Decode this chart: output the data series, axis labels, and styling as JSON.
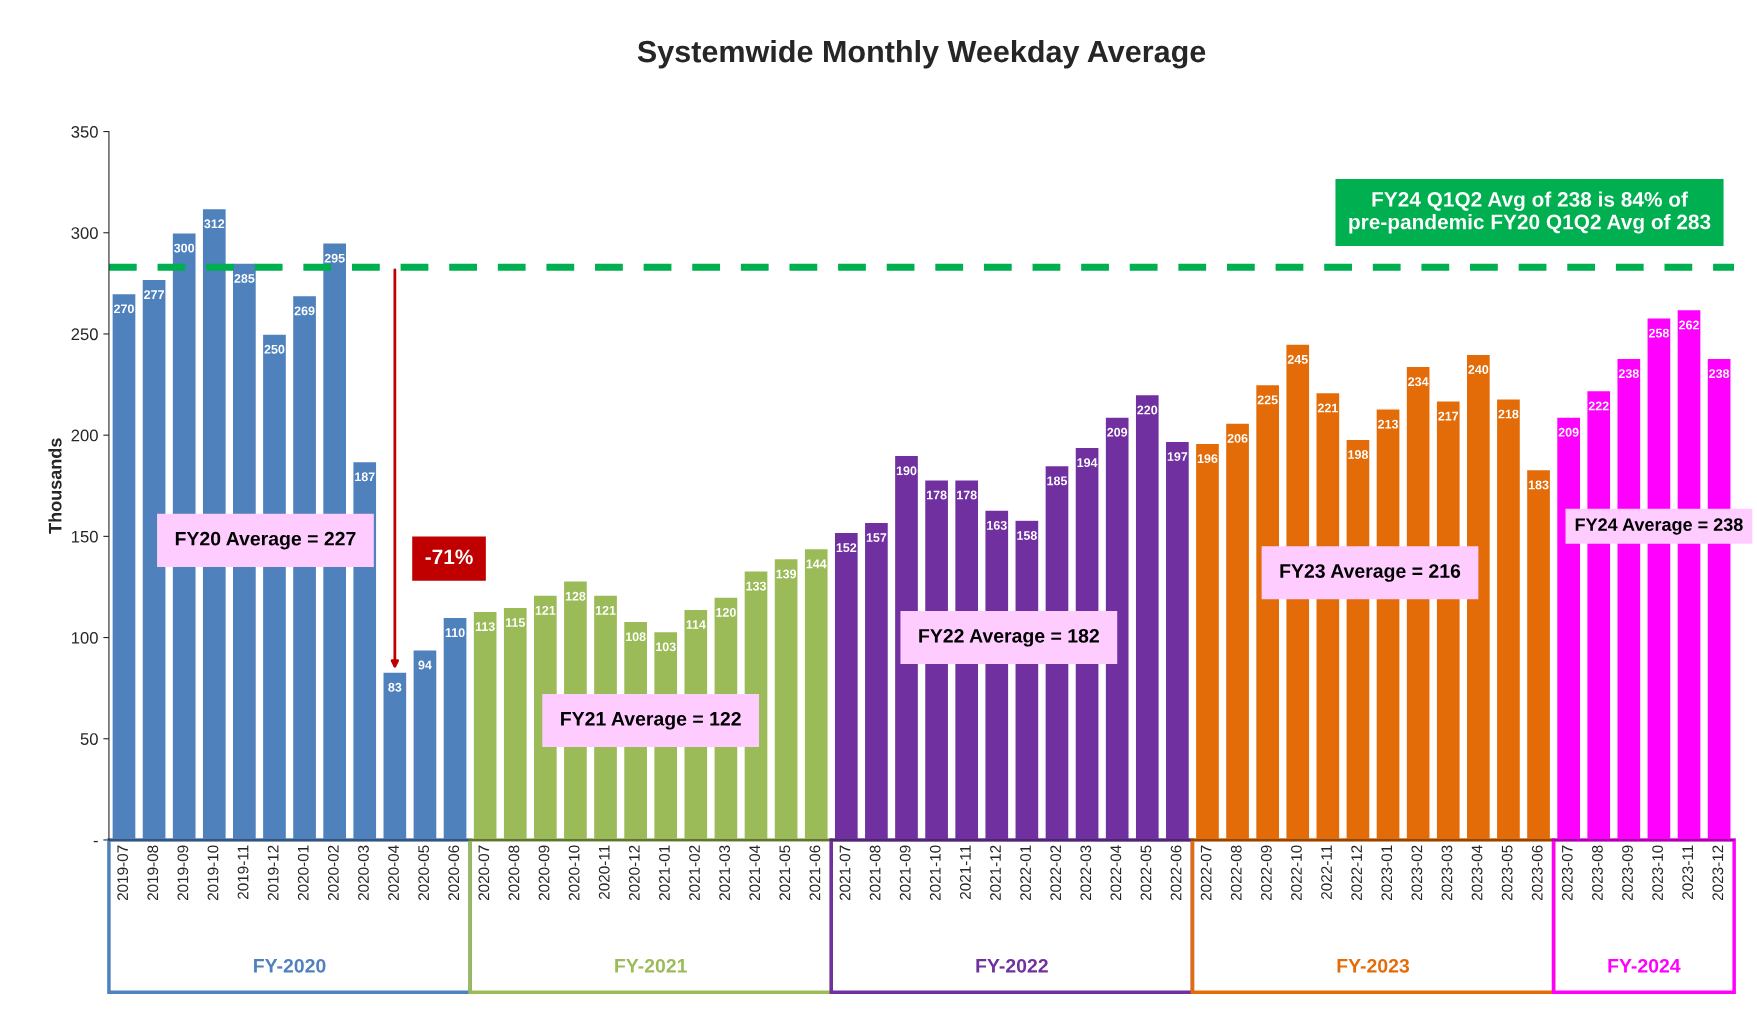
{
  "chart_data": {
    "type": "bar",
    "title": "Systemwide Monthly Weekday Average",
    "ylabel": "Thousands",
    "categories": [
      "2019-07",
      "2019-08",
      "2019-09",
      "2019-10",
      "2019-11",
      "2019-12",
      "2020-01",
      "2020-02",
      "2020-03",
      "2020-04",
      "2020-05",
      "2020-06",
      "2020-07",
      "2020-08",
      "2020-09",
      "2020-10",
      "2020-11",
      "2020-12",
      "2021-01",
      "2021-02",
      "2021-03",
      "2021-04",
      "2021-05",
      "2021-06",
      "2021-07",
      "2021-08",
      "2021-09",
      "2021-10",
      "2021-11",
      "2021-12",
      "2022-01",
      "2022-02",
      "2022-03",
      "2022-04",
      "2022-05",
      "2022-06",
      "2022-07",
      "2022-08",
      "2022-09",
      "2022-10",
      "2022-11",
      "2022-12",
      "2023-01",
      "2023-02",
      "2023-03",
      "2023-04",
      "2023-05",
      "2023-06",
      "2023-07",
      "2023-08",
      "2023-09",
      "2023-10",
      "2023-11",
      "2023-12"
    ],
    "series": [
      {
        "name": "FY-2020",
        "color": "#4f81bd",
        "values": [
          270,
          277,
          300,
          312,
          285,
          250,
          269,
          295,
          187,
          83,
          94,
          110,
          null,
          null,
          null,
          null,
          null,
          null,
          null,
          null,
          null,
          null,
          null,
          null,
          null,
          null,
          null,
          null,
          null,
          null,
          null,
          null,
          null,
          null,
          null,
          null,
          null,
          null,
          null,
          null,
          null,
          null,
          null,
          null,
          null,
          null,
          null,
          null,
          null,
          null,
          null,
          null,
          null,
          null
        ]
      },
      {
        "name": "FY-2021",
        "color": "#9bbb59",
        "values": [
          null,
          null,
          null,
          null,
          null,
          null,
          null,
          null,
          null,
          null,
          null,
          null,
          113,
          115,
          121,
          128,
          121,
          108,
          103,
          114,
          120,
          133,
          139,
          144,
          null,
          null,
          null,
          null,
          null,
          null,
          null,
          null,
          null,
          null,
          null,
          null,
          null,
          null,
          null,
          null,
          null,
          null,
          null,
          null,
          null,
          null,
          null,
          null,
          null,
          null,
          null,
          null,
          null,
          null
        ]
      },
      {
        "name": "FY-2022",
        "color": "#7030a0",
        "values": [
          null,
          null,
          null,
          null,
          null,
          null,
          null,
          null,
          null,
          null,
          null,
          null,
          null,
          null,
          null,
          null,
          null,
          null,
          null,
          null,
          null,
          null,
          null,
          null,
          152,
          157,
          190,
          178,
          178,
          163,
          158,
          185,
          194,
          209,
          220,
          197,
          null,
          null,
          null,
          null,
          null,
          null,
          null,
          null,
          null,
          null,
          null,
          null,
          null,
          null,
          null,
          null,
          null,
          null
        ]
      },
      {
        "name": "FY-2023",
        "color": "#e36c09",
        "values": [
          null,
          null,
          null,
          null,
          null,
          null,
          null,
          null,
          null,
          null,
          null,
          null,
          null,
          null,
          null,
          null,
          null,
          null,
          null,
          null,
          null,
          null,
          null,
          null,
          null,
          null,
          null,
          null,
          null,
          null,
          null,
          null,
          null,
          null,
          null,
          null,
          196,
          206,
          225,
          245,
          221,
          198,
          213,
          234,
          217,
          240,
          218,
          183,
          null,
          null,
          null,
          null,
          null,
          null
        ]
      },
      {
        "name": "FY-2024",
        "color": "#ff00ff",
        "values": [
          null,
          null,
          null,
          null,
          null,
          null,
          null,
          null,
          null,
          null,
          null,
          null,
          null,
          null,
          null,
          null,
          null,
          null,
          null,
          null,
          null,
          null,
          null,
          null,
          null,
          null,
          null,
          null,
          null,
          null,
          null,
          null,
          null,
          null,
          null,
          null,
          null,
          null,
          null,
          null,
          null,
          null,
          null,
          null,
          null,
          null,
          null,
          null,
          209,
          222,
          238,
          258,
          262,
          238
        ]
      }
    ],
    "ylim": [
      0,
      350
    ],
    "yticks": [
      {
        "value": 0,
        "label": "-"
      },
      50,
      100,
      150,
      200,
      250,
      300,
      350
    ],
    "data_labels": true,
    "grid": false,
    "legend": false,
    "ref_lines": [
      {
        "axis": "y",
        "value": 283,
        "color": "#00b050",
        "line_style": "dashed",
        "label": "FY24 Q1Q2 Avg of 238 is 84% of\npre-pandemic FY20 Q1Q2 Avg of 283"
      }
    ],
    "annotations": [
      "FY20 Average = 227",
      "-71%",
      "FY21 Average = 122",
      "FY22 Average = 182",
      "FY23 Average = 216",
      "FY24 Average = 238"
    ]
  }
}
